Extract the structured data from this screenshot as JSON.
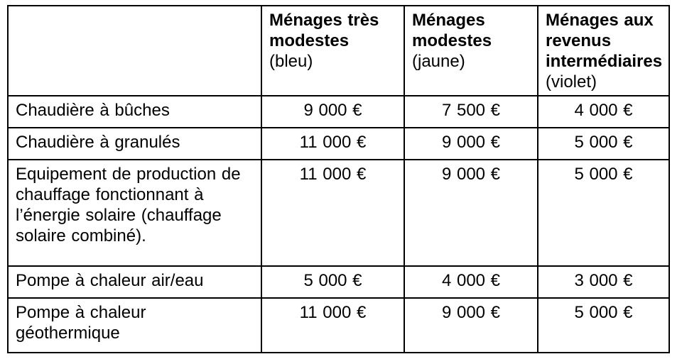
{
  "table": {
    "headers": [
      {
        "bold": "",
        "normal": ""
      },
      {
        "bold": "Ménages très modestes",
        "normal": "(bleu)"
      },
      {
        "bold": "Ménages modestes",
        "normal": "(jaune)"
      },
      {
        "bold": "Ménages aux revenus intermédiaires",
        "normal": "(violet)"
      }
    ],
    "rows": [
      {
        "label": "Chaudière à bûches",
        "values": [
          "9 000 €",
          "7 500 €",
          "4 000 €"
        ]
      },
      {
        "label": "Chaudière à granulés",
        "values": [
          "11 000 €",
          "9 000 €",
          "5 000 €"
        ]
      },
      {
        "label": "Equipement de production de chauffage fonctionnant à l’énergie solaire (chauffage solaire combiné).",
        "values": [
          "11 000 €",
          "9 000 €",
          "5 000 €"
        ]
      },
      {
        "label": "Pompe à chaleur air/eau",
        "values": [
          "5 000 €",
          "4 000 €",
          "3 000 €"
        ]
      },
      {
        "label": "Pompe à chaleur géothermique",
        "values": [
          "11 000 €",
          "9 000 €",
          "5 000 €"
        ]
      }
    ]
  },
  "colors": {
    "border": "#000000",
    "text": "#000000",
    "background": "#ffffff"
  }
}
